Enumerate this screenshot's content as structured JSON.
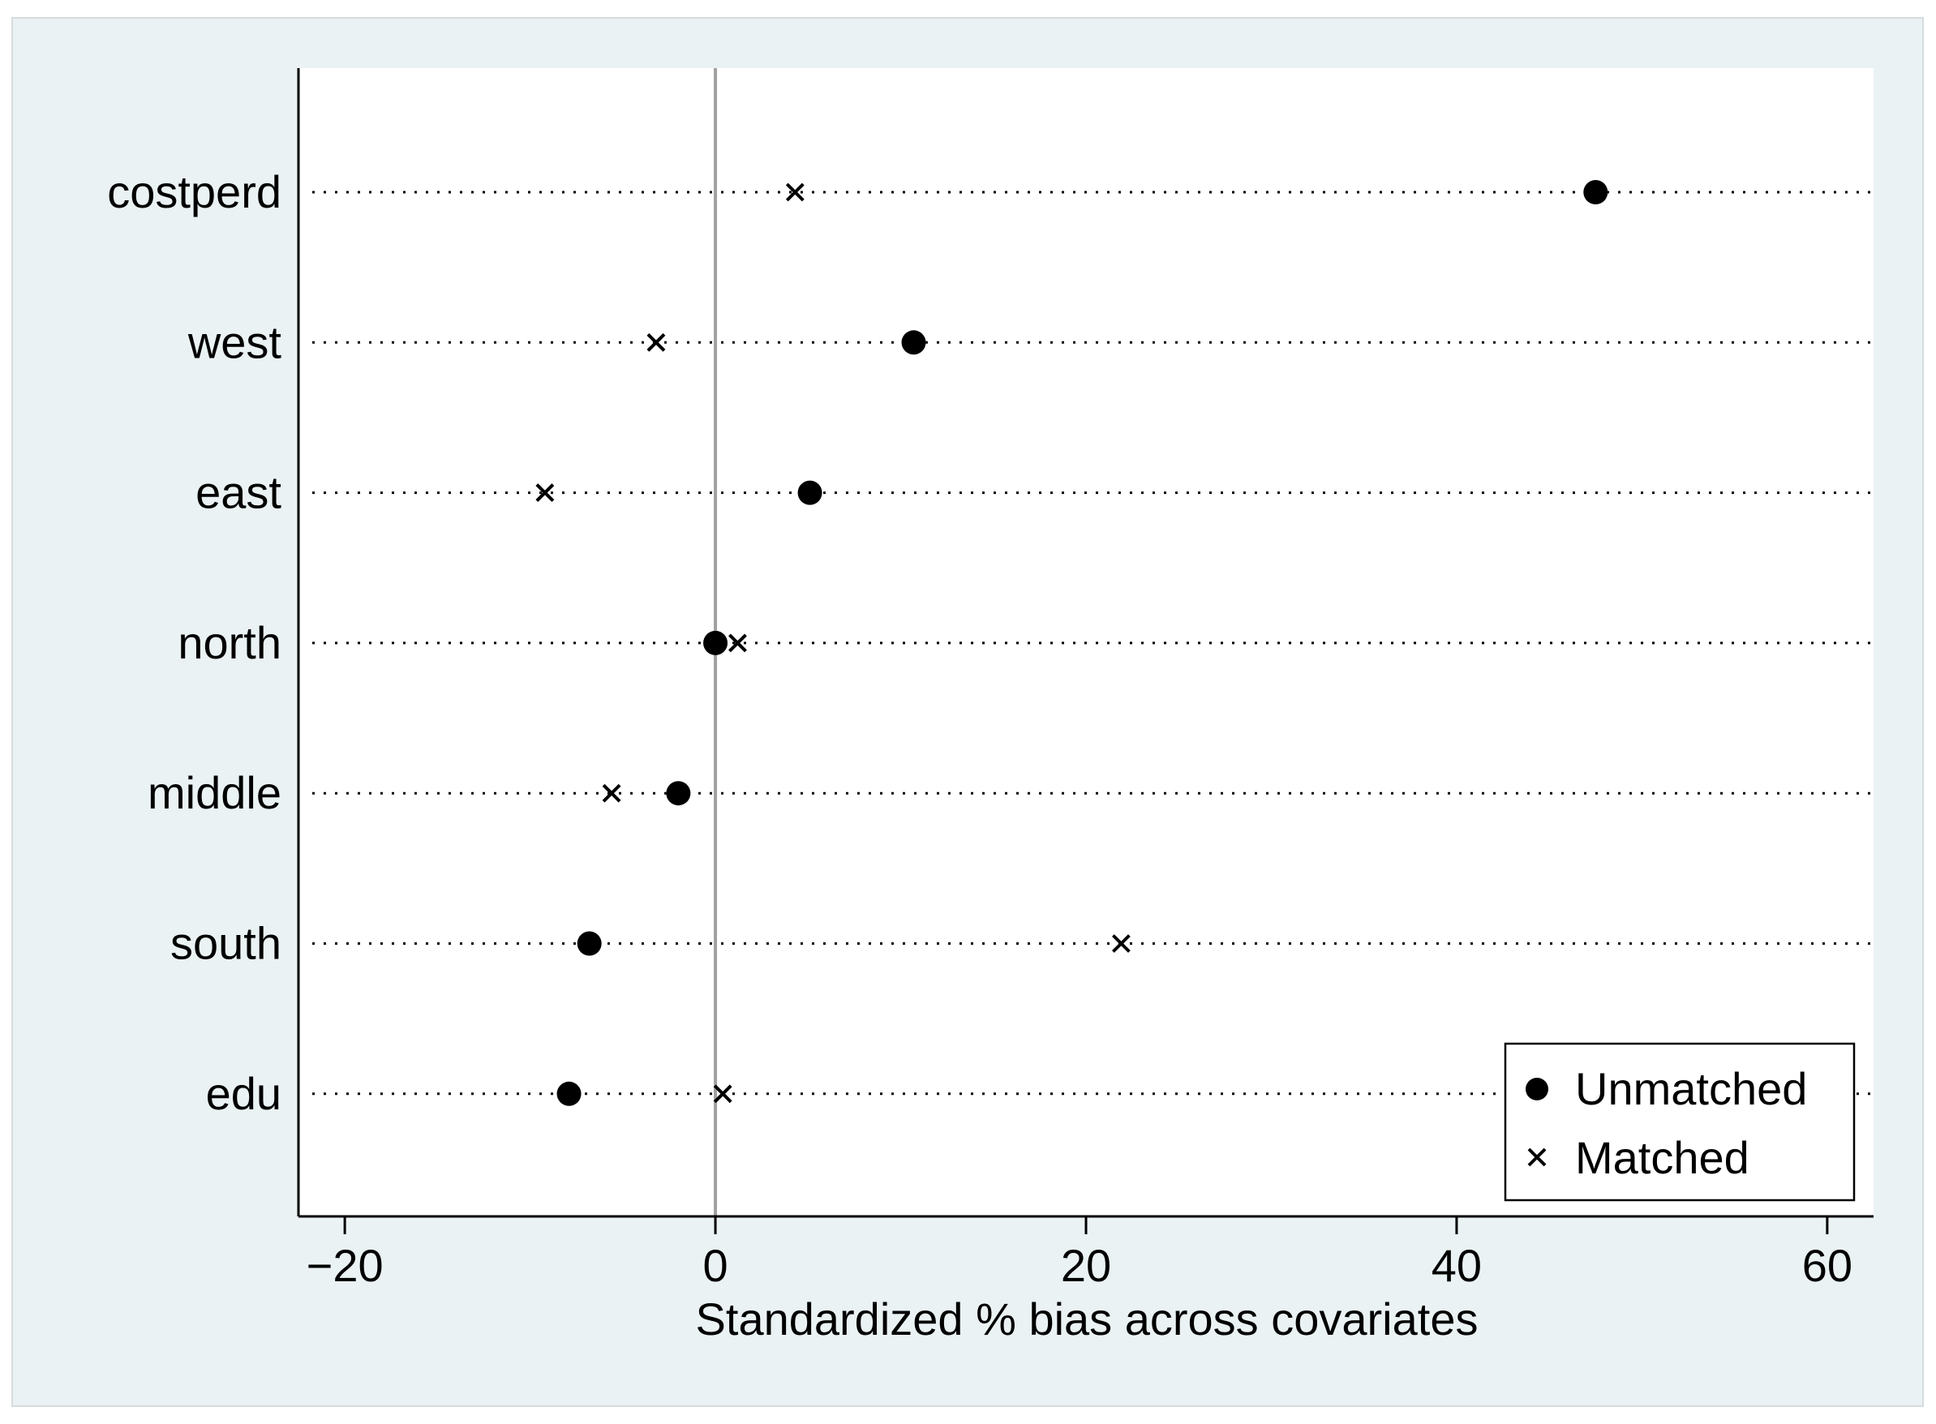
{
  "chart_data": {
    "type": "scatter",
    "title": "",
    "xlabel": "Standardized % bias across covariates",
    "ylabel": "",
    "xlim": [
      -22.5,
      62.5
    ],
    "xticks": [
      -20,
      0,
      20,
      40,
      60
    ],
    "xtick_labels": [
      "−20",
      "0",
      "20",
      "40",
      "60"
    ],
    "categories": [
      "costperd",
      "west",
      "east",
      "north",
      "middle",
      "south",
      "edu"
    ],
    "series": [
      {
        "name": "Unmatched",
        "marker": "circle",
        "values": [
          47.5,
          10.7,
          5.1,
          0.0,
          -2.0,
          -6.8,
          -7.9
        ]
      },
      {
        "name": "Matched",
        "marker": "x",
        "values": [
          4.3,
          -3.2,
          -9.2,
          1.2,
          -5.6,
          21.9,
          0.4
        ]
      }
    ],
    "grid": "dotted horizontal lines at each category",
    "reference_line": 0,
    "legend_position": "bottom-right",
    "colors": {
      "outer_background": "#eaf2f3",
      "plot_background": "#ffffff",
      "marker": "#000000",
      "reference_line": "#a0a0a0",
      "axis": "#000000"
    }
  }
}
